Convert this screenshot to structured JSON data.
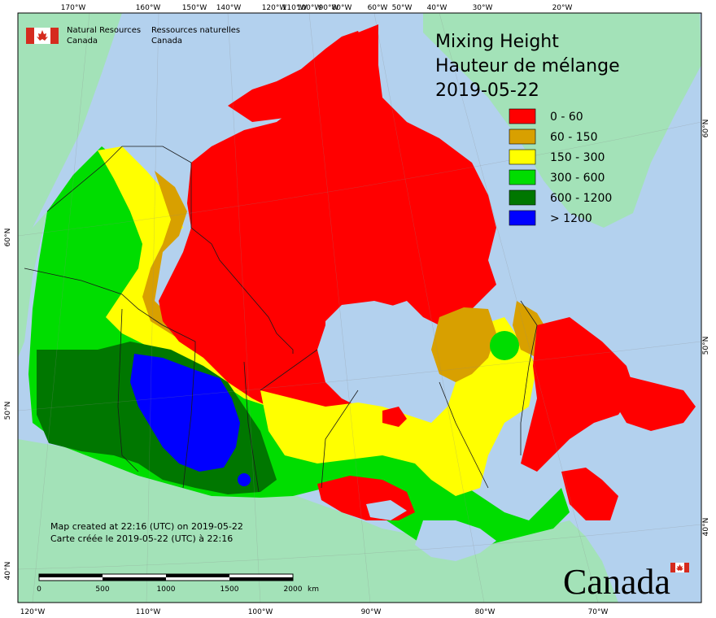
{
  "title": {
    "en": "Mixing Height",
    "fr": "Hauteur de mélange",
    "date": "2019-05-22"
  },
  "agency": {
    "en_line1": "Natural Resources",
    "en_line2": "Canada",
    "fr_line1": "Ressources naturelles",
    "fr_line2": "Canada"
  },
  "legend": [
    {
      "label": "0 - 60",
      "color": "#ff0000"
    },
    {
      "label": "60 - 150",
      "color": "#d8a000"
    },
    {
      "label": "150 - 300",
      "color": "#ffff00"
    },
    {
      "label": "300 - 600",
      "color": "#00dd00"
    },
    {
      "label": "600 - 1200",
      "color": "#007700"
    },
    {
      "label": "> 1200",
      "color": "#0000ff"
    }
  ],
  "credits": {
    "en": "Map created at 22:16 (UTC) on 2019-05-22",
    "fr": "Carte créée le 2019-05-22 (UTC) à 22:16"
  },
  "scalebar": {
    "labels": [
      "0",
      "500",
      "1000",
      "1500",
      "2000"
    ],
    "unit": "km"
  },
  "wordmark": "Canada",
  "graticule": {
    "top": [
      "170°W",
      "160°W",
      "150°W",
      "140°W",
      "120°W",
      "110°W",
      "100°W",
      "90°W",
      "80°W",
      "60°W",
      "50°W",
      "40°W",
      "30°W",
      "20°W"
    ],
    "bottom": [
      "120°W",
      "110°W",
      "100°W",
      "90°W",
      "80°W",
      "70°W"
    ],
    "left": [
      "60°N",
      "50°N",
      "40°N"
    ],
    "right": [
      "60°N",
      "50°N",
      "40°N"
    ]
  },
  "colors": {
    "ocean": "#b3d1ee",
    "land": "#a3e2b8",
    "border": "#1a1a1a"
  }
}
